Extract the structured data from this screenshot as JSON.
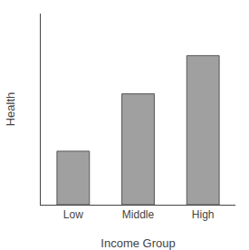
{
  "chart_data": {
    "type": "bar",
    "categories": [
      "Low",
      "Middle",
      "High"
    ],
    "values": [
      0.28,
      0.58,
      0.78
    ],
    "color": "#a0a0a0",
    "xlabel": "Income Group",
    "ylabel": "Health",
    "ylim": [
      0,
      1.0
    ],
    "grid": false,
    "tick_labels": "x"
  }
}
